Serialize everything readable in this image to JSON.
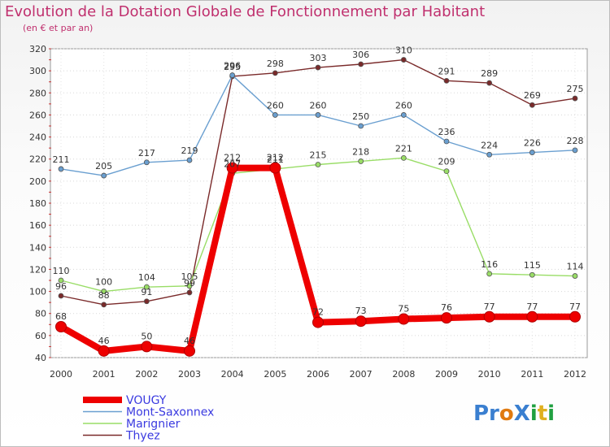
{
  "chart_data": {
    "type": "line",
    "title": "Evolution de la Dotation Globale de Fonctionnement par Habitant",
    "subtitle": "(en € et par an)",
    "xlabel": "",
    "ylabel": "",
    "ylim": [
      40,
      320
    ],
    "yticks": [
      40,
      60,
      80,
      100,
      120,
      140,
      160,
      180,
      200,
      220,
      240,
      260,
      280,
      300,
      320
    ],
    "categories": [
      "2000",
      "2001",
      "2002",
      "2003",
      "2004",
      "2005",
      "2006",
      "2007",
      "2008",
      "2009",
      "2010",
      "2011",
      "2012"
    ],
    "series": [
      {
        "name": "Thyez",
        "color": "#7a2a2a",
        "values": [
          96,
          88,
          91,
          99,
          295,
          298,
          303,
          306,
          310,
          291,
          289,
          269,
          275
        ]
      },
      {
        "name": "Mont-Saxonnex",
        "color": "#6a9fd0",
        "values": [
          211,
          205,
          217,
          219,
          296,
          260,
          260,
          250,
          260,
          236,
          224,
          226,
          228
        ]
      },
      {
        "name": "Marignier",
        "color": "#99dd66",
        "values": [
          110,
          100,
          104,
          105,
          207,
          211,
          215,
          218,
          221,
          209,
          116,
          115,
          114
        ]
      },
      {
        "name": "VOUGY",
        "color": "#ee0000",
        "values": [
          68,
          46,
          50,
          46,
          212,
          212,
          72,
          73,
          75,
          76,
          77,
          77,
          77
        ]
      }
    ],
    "legend": [
      "VOUGY",
      "Mont-Saxonnex",
      "Marignier",
      "Thyez"
    ],
    "legend_position": "bottom-left"
  },
  "watermark": "ProXiti"
}
